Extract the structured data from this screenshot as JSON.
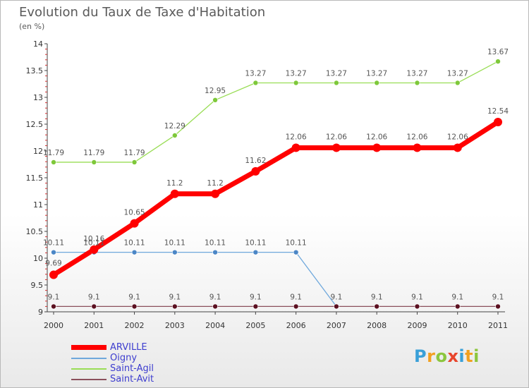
{
  "title": "Evolution du Taux de Taxe d'Habitation",
  "subtitle": "(en %)",
  "logo": {
    "letters": [
      "P",
      "r",
      "o",
      "x",
      "i",
      "t",
      "i"
    ],
    "colors": [
      "#3aa0d8",
      "#f2a020",
      "#8cc63e",
      "#e8452c",
      "#3aa0d8",
      "#f2a020",
      "#8cc63e"
    ]
  },
  "chart_data": {
    "type": "line",
    "x": [
      "2000",
      "2001",
      "2002",
      "2003",
      "2004",
      "2005",
      "2006",
      "2007",
      "2008",
      "2009",
      "2010",
      "2011"
    ],
    "ylim": [
      9,
      14
    ],
    "yticks": [
      "9",
      "9.5",
      "10",
      "10.5",
      "11",
      "11.5",
      "12",
      "12.5",
      "13",
      "13.5",
      "14"
    ],
    "grid": false,
    "legend_position": "bottom-left",
    "series": [
      {
        "name": "ARVILLE",
        "color": "#ff0000",
        "width": 7,
        "marker_color": "#ff0000",
        "marker_radius": 6,
        "values": [
          9.69,
          10.16,
          10.65,
          11.2,
          11.2,
          11.62,
          12.06,
          12.06,
          12.06,
          12.06,
          12.06,
          12.54
        ],
        "labels": [
          "9.69",
          "10.16",
          "10.65",
          "11.2",
          "11.2",
          "11.62",
          "12.06",
          "12.06",
          "12.06",
          "12.06",
          "12.06",
          "12.54"
        ]
      },
      {
        "name": "Oigny",
        "color": "#6fa8dc",
        "width": 1.3,
        "marker_color": "#4b86c6",
        "marker_radius": 3.5,
        "values": [
          10.11,
          10.11,
          10.11,
          10.11,
          10.11,
          10.11,
          10.11,
          null,
          null,
          null,
          null,
          null
        ],
        "drop_to": 9.1,
        "labels": [
          "10.11",
          "10.11",
          "10.11",
          "10.11",
          "10.11",
          "10.11",
          "10.11",
          "",
          "",
          "",
          "",
          ""
        ]
      },
      {
        "name": "Saint-Agil",
        "color": "#99dd55",
        "width": 1.3,
        "marker_color": "#7ec83a",
        "marker_radius": 3.5,
        "values": [
          11.79,
          11.79,
          11.79,
          12.29,
          12.95,
          13.27,
          13.27,
          13.27,
          13.27,
          13.27,
          13.27,
          13.67
        ],
        "labels": [
          "11.79",
          "11.79",
          "11.79",
          "12.29",
          "12.95",
          "13.27",
          "13.27",
          "13.27",
          "13.27",
          "13.27",
          "13.27",
          "13.67"
        ]
      },
      {
        "name": "Saint-Avit",
        "color": "#8a4f5b",
        "width": 1.3,
        "marker_color": "#5b1020",
        "marker_radius": 3.5,
        "values": [
          9.1,
          9.1,
          9.1,
          9.1,
          9.1,
          9.1,
          9.1,
          9.1,
          9.1,
          9.1,
          9.1,
          9.1
        ],
        "labels": [
          "9.1",
          "9.1",
          "9.1",
          "9.1",
          "9.1",
          "9.1",
          "9.1",
          "9.1",
          "9.1",
          "9.1",
          "9.1",
          "9.1"
        ]
      }
    ]
  }
}
